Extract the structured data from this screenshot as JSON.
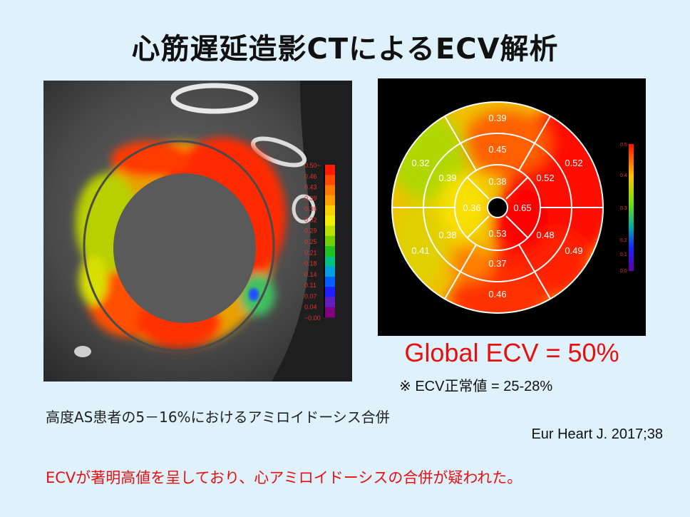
{
  "title": "心筋遅延造影CTによるECV解析",
  "ct_image": {
    "colorbar_labels": [
      "0.50~",
      "0.46",
      "0.43",
      "0.39",
      "0.36",
      "0.32",
      "0.29",
      "0.25",
      "0.21",
      "0.18",
      "0.14",
      "0.11",
      "0.07",
      "0.04",
      "~0.00"
    ],
    "colorbar_colors": [
      "#ff1a00",
      "#ff4a00",
      "#ff7a00",
      "#ffa000",
      "#ffd000",
      "#f0f000",
      "#b8e000",
      "#70d000",
      "#20c020",
      "#00c080",
      "#00a0e0",
      "#0060ff",
      "#2020ff",
      "#6020c0",
      "#800080"
    ]
  },
  "polar_map": {
    "segments": {
      "outer": [
        "0.39",
        "0.52",
        "0.49",
        "0.46",
        "0.41",
        "0.32"
      ],
      "middle": [
        "0.45",
        "0.52",
        "0.48",
        "0.37",
        "0.38",
        "0.39"
      ],
      "inner": [
        "0.38",
        "0.65",
        "0.53",
        "0.36"
      ]
    },
    "colorbar_labels": [
      "0.5",
      "0.4",
      "0.3",
      "0.2",
      "0.1",
      "0.0"
    ]
  },
  "global_ecv": "Global ECV = 50%",
  "normal_range": "※ ECV正常値 = 25-28%",
  "note": "高度AS患者の5－16%におけるアミロイドーシス合併",
  "reference": "Eur Heart J. 2017;38",
  "conclusion": "ECVが著明高値を呈しており、心アミロイドーシスの合併が疑われた。"
}
